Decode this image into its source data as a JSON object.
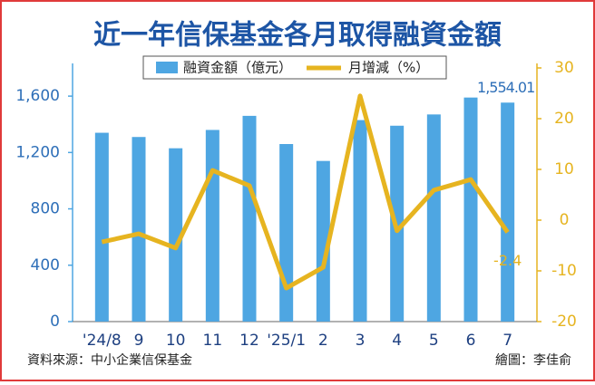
{
  "chart_data": {
    "type": "bar_line",
    "title": "近一年信保基金各月取得融資金額",
    "categories": [
      "'24/8",
      "9",
      "10",
      "11",
      "12",
      "'25/1",
      "2",
      "3",
      "4",
      "5",
      "6",
      "7"
    ],
    "series": [
      {
        "name": "融資金額（億元）",
        "type": "bar",
        "color": "#4ea6e2",
        "values": [
          1340,
          1310,
          1230,
          1360,
          1460,
          1260,
          1140,
          1430,
          1390,
          1470,
          1590,
          1554.01
        ],
        "value_labels": [
          null,
          null,
          null,
          null,
          null,
          null,
          null,
          null,
          null,
          null,
          null,
          "1,554.01"
        ]
      },
      {
        "name": "月增減（%）",
        "type": "line",
        "axis": "y2",
        "color": "#e6b420",
        "values": [
          -4.3,
          -2.7,
          -5.5,
          9.8,
          6.8,
          -13.4,
          -9.3,
          24.5,
          -2.1,
          5.9,
          8.0,
          -2.4
        ],
        "value_labels": [
          null,
          null,
          null,
          null,
          null,
          null,
          null,
          null,
          null,
          null,
          null,
          "-2.4"
        ]
      }
    ],
    "ylim": [
      0,
      1800
    ],
    "yticks": [
      0,
      400,
      800,
      {
        "value": 1200,
        "label": "1,200"
      },
      {
        "value": 1600,
        "label": "1,600"
      }
    ],
    "y2lim": [
      -20,
      30
    ],
    "y2ticks": [
      -20,
      -10,
      0,
      10,
      20,
      30
    ],
    "source": "資料來源：中小企業信保基金",
    "credit": "繪圖：李佳俞"
  }
}
